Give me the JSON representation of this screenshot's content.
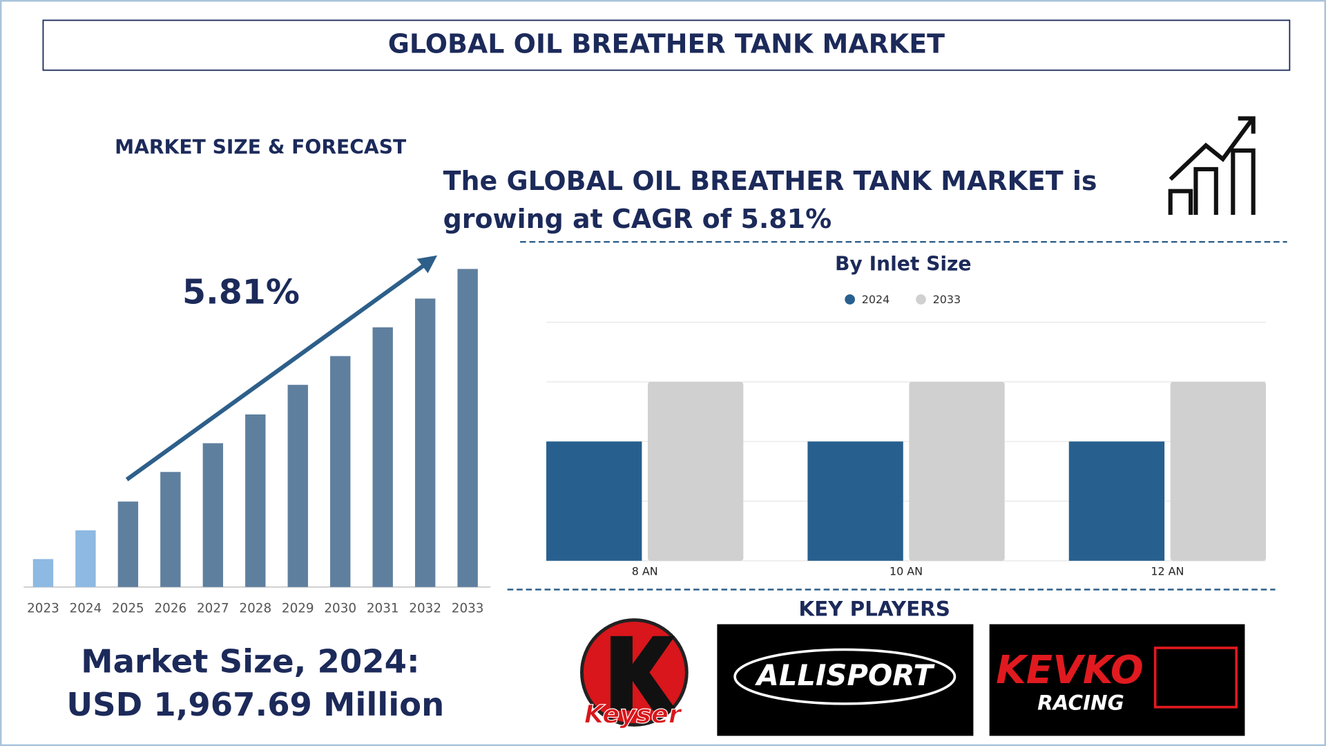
{
  "header": {
    "title": "GLOBAL OIL BREATHER TANK MARKET"
  },
  "section_title": "MARKET SIZE & FORECAST",
  "headline": [
    "The GLOBAL OIL BREATHER TANK MARKET is",
    "growing at CAGR of 5.81%"
  ],
  "market_size": [
    "Market Size, 2024:",
    "USD 1,967.69 Million"
  ],
  "chart_data": [
    {
      "type": "bar",
      "categories": [
        "2023",
        "2024",
        "2025",
        "2026",
        "2027",
        "2028",
        "2029",
        "2030",
        "2031",
        "2032",
        "2033"
      ],
      "values": [
        33,
        67,
        101,
        136,
        170,
        204,
        239,
        273,
        307,
        341,
        376
      ],
      "colors": [
        "#8db9e2",
        "#8db9e2",
        "#5f7f9f",
        "#5f7f9f",
        "#5f7f9f",
        "#5f7f9f",
        "#5f7f9f",
        "#5f7f9f",
        "#5f7f9f",
        "#5f7f9f",
        "#5f7f9f"
      ],
      "ylim": [
        0,
        400
      ],
      "annotation": "5.81%"
    },
    {
      "type": "grouped-bar",
      "title": "By Inlet Size",
      "categories": [
        "8 AN",
        "10 AN",
        "12 AN"
      ],
      "series": [
        {
          "name": "2024",
          "color": "#27608f",
          "values": [
            2,
            2,
            2
          ]
        },
        {
          "name": "2033",
          "color": "#d0d0d0",
          "values": [
            3,
            3,
            3
          ]
        }
      ],
      "ylim": [
        0,
        4
      ],
      "yticks": [
        0,
        1,
        2,
        3,
        4
      ],
      "grid": true
    }
  ],
  "key_players": {
    "title": "KEY PLAYERS",
    "names": [
      "Keyser",
      "ALLISPORT",
      "KEVKO",
      "RACING"
    ]
  }
}
